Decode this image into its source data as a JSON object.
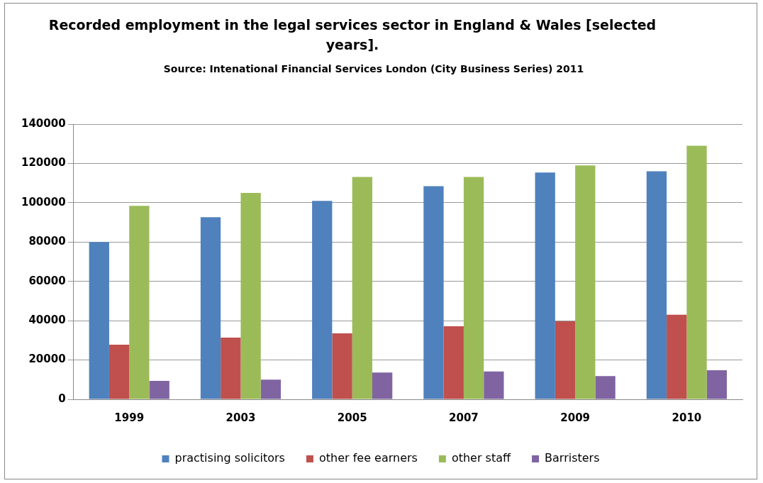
{
  "chart_data": {
    "type": "bar",
    "title": "Recorded employment in the legal services sector in England & Wales [selected years].",
    "subtitle": "Source: Intenational Financial  Services London (City Business Series) 2011",
    "categories": [
      "1999",
      "2003",
      "2005",
      "2007",
      "2009",
      "2010"
    ],
    "series": [
      {
        "name": "practising solicitors",
        "color": "#4f81bd",
        "values": [
          80000,
          92600,
          100900,
          108400,
          115400,
          116000
        ]
      },
      {
        "name": "other fee earners",
        "color": "#c0504d",
        "values": [
          27800,
          31400,
          33600,
          37200,
          39700,
          43000
        ]
      },
      {
        "name": "other staff",
        "color": "#9bbb59",
        "values": [
          98400,
          105000,
          113100,
          113100,
          119000,
          129000
        ]
      },
      {
        "name": "Barristers",
        "color": "#8064a2",
        "values": [
          9400,
          10000,
          13600,
          14200,
          11800,
          14800
        ]
      }
    ],
    "ylim": [
      0,
      140000
    ],
    "yticks": [
      0,
      20000,
      40000,
      60000,
      80000,
      100000,
      120000,
      140000
    ],
    "grid": "y",
    "legend": "bottom"
  }
}
